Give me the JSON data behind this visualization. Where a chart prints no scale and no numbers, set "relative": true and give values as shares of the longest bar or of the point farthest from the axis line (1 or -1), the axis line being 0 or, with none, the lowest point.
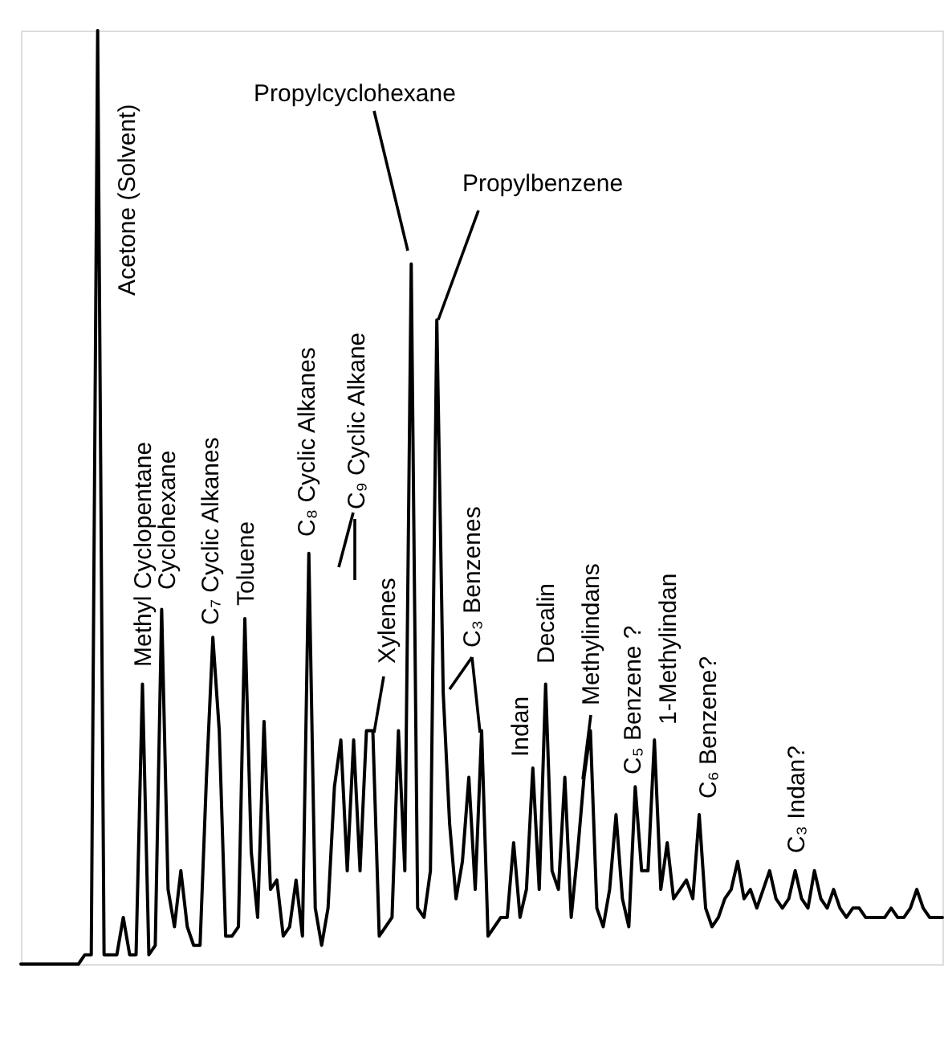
{
  "chart_data": {
    "type": "line",
    "relative": true,
    "tick_labels": false,
    "categories": [
      null,
      null,
      null,
      null,
      null,
      null,
      null,
      null,
      null,
      null,
      null,
      null,
      null,
      null,
      null,
      null,
      null,
      null,
      null,
      null,
      null,
      null,
      null,
      null,
      null,
      null,
      null,
      null,
      null,
      null,
      null,
      null,
      null,
      null,
      null,
      null,
      null,
      null,
      null,
      null,
      null,
      null,
      null,
      null,
      null,
      null,
      null,
      null,
      null,
      null,
      null,
      null,
      null,
      null,
      null,
      null,
      null,
      null,
      null,
      null,
      null,
      null,
      null,
      null,
      null,
      null,
      null,
      null,
      null,
      null,
      null,
      null,
      null,
      null,
      null,
      null,
      null,
      null,
      null,
      null,
      null,
      null,
      null,
      null,
      null,
      null,
      null,
      null,
      null,
      null,
      null,
      null,
      null,
      null,
      null,
      null,
      null,
      null,
      null,
      null,
      null,
      null,
      null,
      null,
      null,
      null,
      null,
      null,
      null,
      null,
      null,
      null,
      null,
      null,
      null,
      null,
      null,
      null,
      null,
      null,
      null,
      null,
      null,
      null,
      null,
      null,
      null,
      null,
      null,
      null,
      null,
      null,
      null,
      null,
      null,
      null,
      null,
      null,
      null,
      null,
      null,
      null,
      null,
      null,
      null
    ],
    "series": [
      {
        "color": "#000000",
        "values": [
          0,
          0,
          0,
          0,
          0,
          0,
          0,
          0,
          0,
          0,
          0.01,
          0.01,
          1,
          0.01,
          0.01,
          0.01,
          0.05,
          0.01,
          0.01,
          0.3,
          0.01,
          0.02,
          0.38,
          0.08,
          0.04,
          0.1,
          0.04,
          0.02,
          0.02,
          0.2,
          0.35,
          0.25,
          0.03,
          0.03,
          0.04,
          0.37,
          0.12,
          0.05,
          0.26,
          0.08,
          0.09,
          0.03,
          0.04,
          0.09,
          0.03,
          0.44,
          0.06,
          0.02,
          0.06,
          0.19,
          0.24,
          0.1,
          0.24,
          0.1,
          0.25,
          0.25,
          0.03,
          0.04,
          0.05,
          0.25,
          0.1,
          0.75,
          0.06,
          0.05,
          0.1,
          0.69,
          0.29,
          0.15,
          0.07,
          0.11,
          0.2,
          0.08,
          0.25,
          0.03,
          0.04,
          0.05,
          0.05,
          0.13,
          0.05,
          0.08,
          0.21,
          0.08,
          0.3,
          0.1,
          0.08,
          0.2,
          0.05,
          0.12,
          0.2,
          0.25,
          0.06,
          0.04,
          0.08,
          0.16,
          0.07,
          0.04,
          0.19,
          0.1,
          0.1,
          0.24,
          0.08,
          0.13,
          0.07,
          0.08,
          0.09,
          0.07,
          0.16,
          0.06,
          0.04,
          0.05,
          0.07,
          0.08,
          0.11,
          0.07,
          0.08,
          0.06,
          0.08,
          0.1,
          0.07,
          0.06,
          0.07,
          0.1,
          0.07,
          0.06,
          0.1,
          0.07,
          0.06,
          0.08,
          0.06,
          0.05,
          0.06,
          0.06,
          0.05,
          0.05,
          0.05,
          0.05,
          0.06,
          0.05,
          0.05,
          0.06,
          0.08,
          0.06,
          0.05,
          0.05,
          0.05
        ]
      }
    ],
    "annotations": [
      "Acetone (Solvent)",
      "Methyl Cyclopentane",
      "Cyclohexane",
      "C₇ Cyclic Alkanes",
      "Toluene",
      "C₈ Cyclic Alkanes",
      "C₉ Cyclic Alkane",
      "Xylenes",
      "Propylcyclohexane",
      "Propylbenzene",
      "C₃ Benzenes",
      "Indan",
      "Decalin",
      "Methylindans",
      "C₅ Benzene ?",
      "1-Methylindan",
      "C₆ Benzene?",
      "C₃ Indan?"
    ]
  }
}
